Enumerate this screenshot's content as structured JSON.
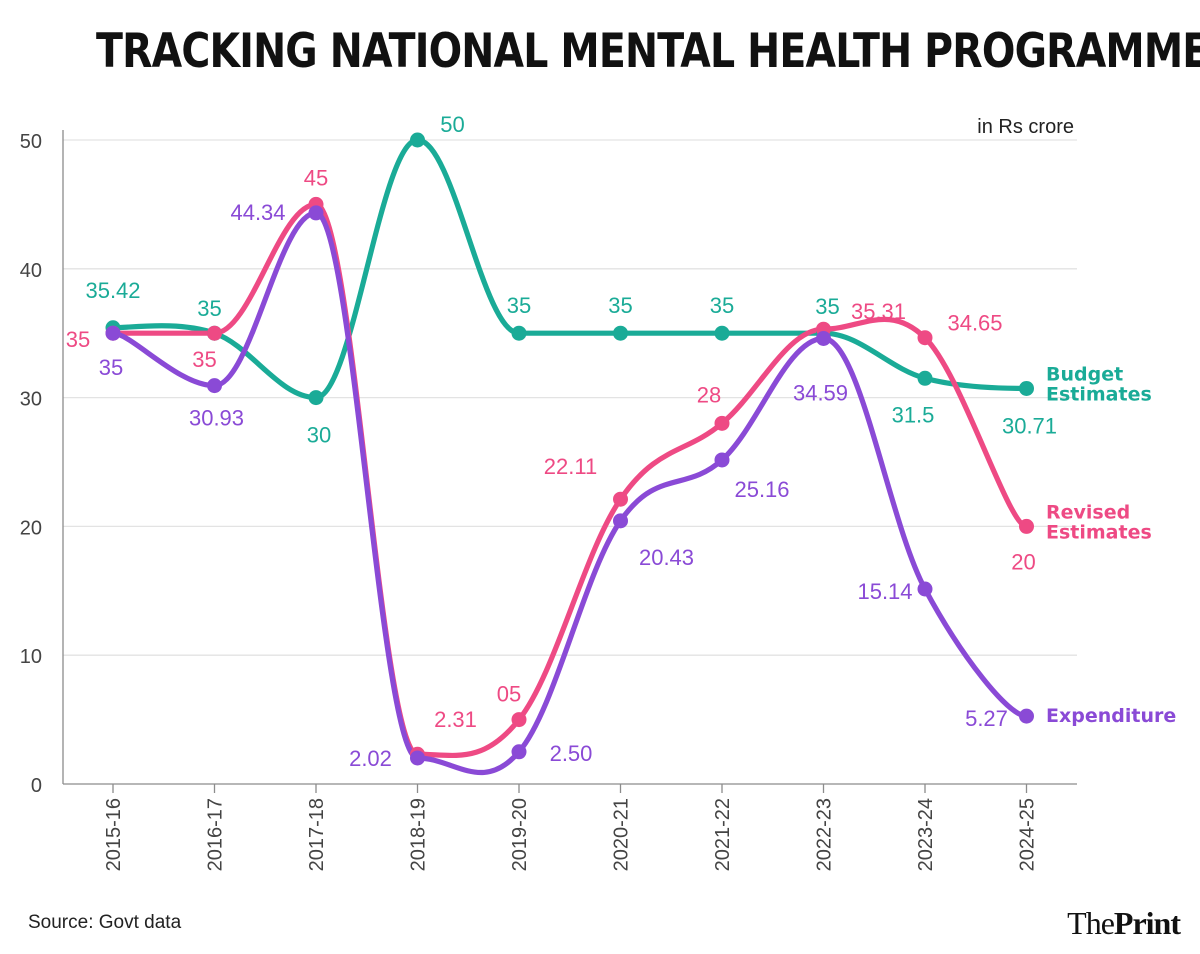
{
  "title": "TRACKING NATIONAL MENTAL HEALTH PROGRAMME",
  "unit_note": "in Rs crore",
  "source": "Source: Govt data",
  "brand": {
    "part1": "The",
    "part2": "Print"
  },
  "colors": {
    "budget": "#1aab97",
    "revised": "#ee4a84",
    "expenditure": "#8a4ad6",
    "grid": "#e3e3e3",
    "axis": "#8c8c8c",
    "text": "#444444"
  },
  "chart_data": {
    "type": "line",
    "title": "TRACKING NATIONAL MENTAL HEALTH PROGRAMME",
    "ylabel": "in Rs crore",
    "xlabel": "",
    "ylim": [
      0,
      50
    ],
    "yticks": [
      0,
      10,
      20,
      30,
      40,
      50
    ],
    "grid": true,
    "categories": [
      "2015-16",
      "2016-17",
      "2017-18",
      "2018-19",
      "2019-20",
      "2020-21",
      "2021-22",
      "2022-23",
      "2023-24",
      "2024-25"
    ],
    "series": [
      {
        "name": "Budget Estimates",
        "legend": [
          "Budget",
          "Estimates"
        ],
        "values": [
          35.42,
          35,
          30,
          50,
          35,
          35,
          35,
          35,
          31.5,
          30.71
        ],
        "labels": [
          "35.42",
          "35",
          "30",
          "50",
          "35",
          "35",
          "35",
          "35",
          "31.5",
          "30.71"
        ]
      },
      {
        "name": "Revised Estimates",
        "legend": [
          "Revised",
          "Estimates"
        ],
        "values": [
          35,
          35,
          45,
          2.31,
          5,
          22.11,
          28,
          35.31,
          34.65,
          20
        ],
        "labels": [
          "35",
          "35",
          "45",
          "2.31",
          "05",
          "22.11",
          "28",
          "35.31",
          "34.65",
          "20"
        ]
      },
      {
        "name": "Expenditure",
        "legend": [
          "Expenditure"
        ],
        "values": [
          35,
          30.93,
          44.34,
          2.02,
          2.5,
          20.43,
          25.16,
          34.59,
          15.14,
          5.27
        ],
        "labels": [
          "35",
          "30.93",
          "44.34",
          "2.02",
          "2.50",
          "20.43",
          "25.16",
          "34.59",
          "15.14",
          "5.27"
        ]
      }
    ]
  }
}
